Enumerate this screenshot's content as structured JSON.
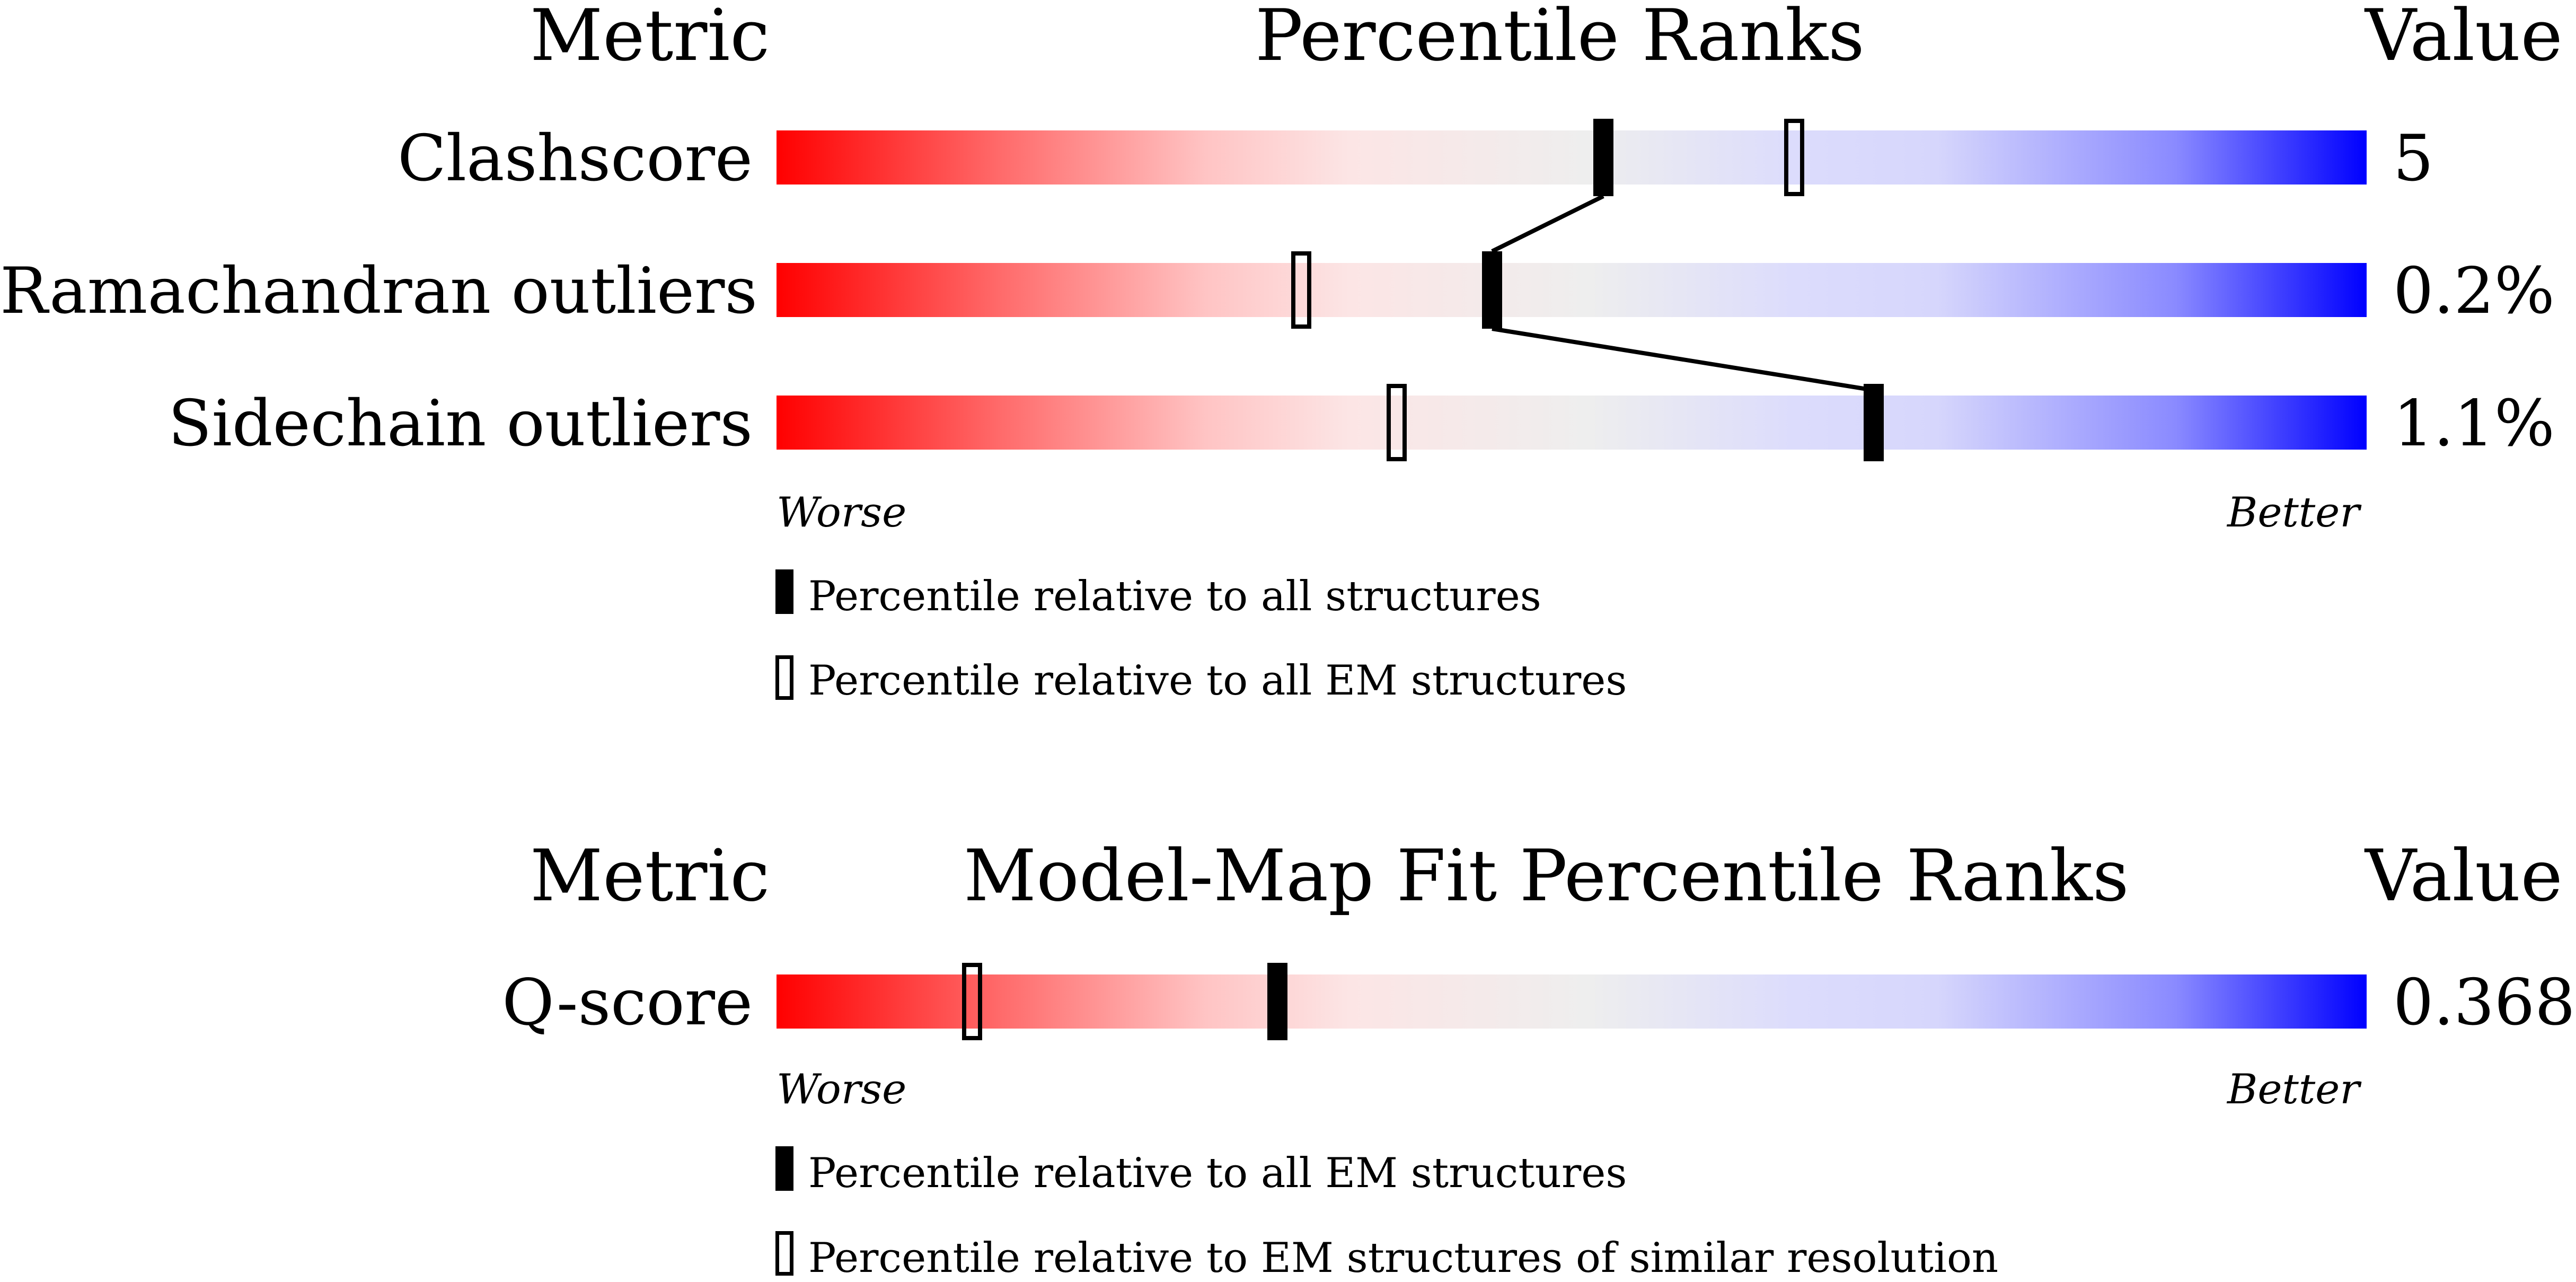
{
  "chart_data": [
    {
      "type": "percentile-bar",
      "headers": {
        "metric": "Metric",
        "title": "Percentile Ranks",
        "value": "Value"
      },
      "rows": [
        {
          "metric": "Clashscore",
          "value": "5",
          "percentile_all": 52,
          "percentile_em": 64
        },
        {
          "metric": "Ramachandran outliers",
          "value": "0.2%",
          "percentile_all": 45,
          "percentile_em": 33
        },
        {
          "metric": "Sidechain outliers",
          "value": "1.1%",
          "percentile_all": 69,
          "percentile_em": 39
        }
      ],
      "axis": {
        "left": "Worse",
        "right": "Better"
      },
      "legend": {
        "filled": "Percentile relative to all structures",
        "hollow": "Percentile relative to all EM structures"
      }
    },
    {
      "type": "percentile-bar",
      "headers": {
        "metric": "Metric",
        "title": "Model-Map Fit Percentile Ranks",
        "value": "Value"
      },
      "rows": [
        {
          "metric": "Q-score",
          "value": "0.368",
          "percentile_all": 31.5,
          "percentile_em": 12.3
        }
      ],
      "axis": {
        "left": "Worse",
        "right": "Better"
      },
      "legend": {
        "filled": "Percentile relative to all EM structures",
        "hollow": "Percentile relative to EM structures of similar resolution"
      }
    }
  ]
}
